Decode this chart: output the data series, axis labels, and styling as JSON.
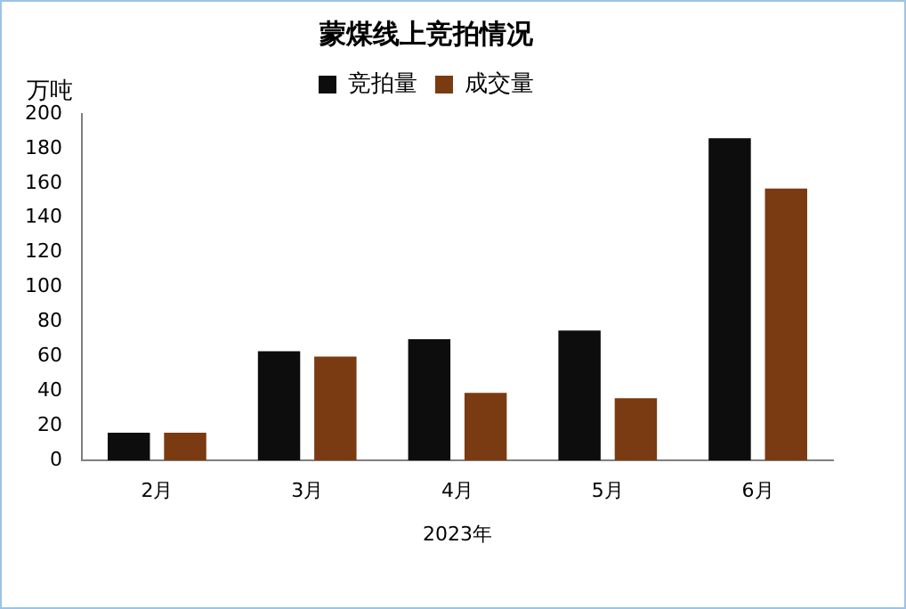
{
  "chart_data": {
    "type": "bar",
    "title": "蒙煤线上竞拍情况",
    "ylabel": "万吨",
    "xlabel": "2023年",
    "categories": [
      "2月",
      "3月",
      "4月",
      "5月",
      "6月"
    ],
    "series": [
      {
        "name": "竞拍量",
        "color": "#0d0d0d",
        "values": [
          16,
          63,
          70,
          75,
          186
        ]
      },
      {
        "name": "成交量",
        "color": "#7a3b12",
        "values": [
          16,
          60,
          39,
          36,
          157
        ]
      }
    ],
    "ylim": [
      0,
      200
    ],
    "yticks": [
      0,
      20,
      40,
      60,
      80,
      100,
      120,
      140,
      160,
      180,
      200
    ],
    "grid": false,
    "legend": "top"
  }
}
